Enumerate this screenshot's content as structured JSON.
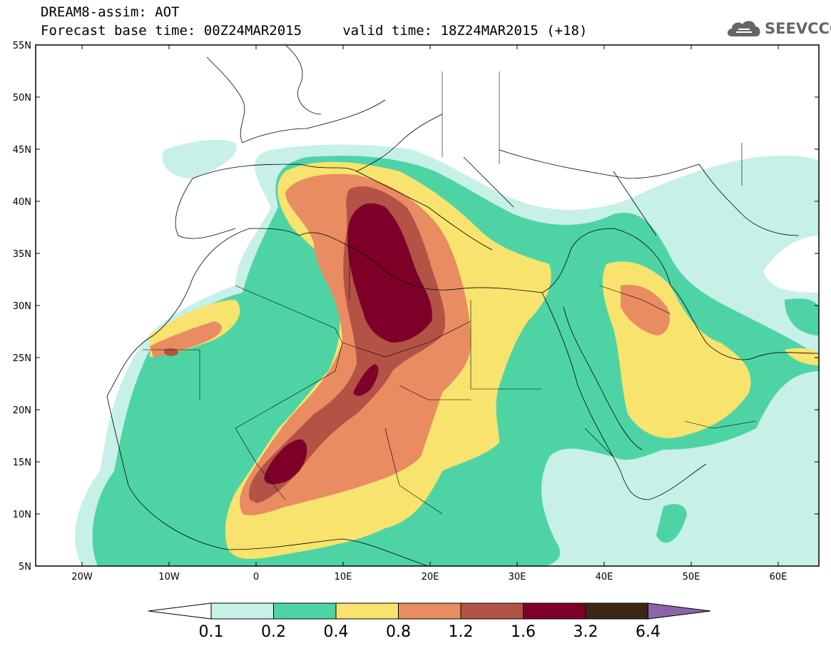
{
  "header": {
    "line1": "DREAM8-assim: AOT",
    "line2": "Forecast base time: 00Z24MAR2015     valid time: 18Z24MAR2015 (+18)",
    "logo_text": "SEEVCCC",
    "logo_icon": "cloud-icon"
  },
  "map": {
    "lat_labels": [
      "55N",
      "50N",
      "45N",
      "40N",
      "35N",
      "30N",
      "25N",
      "20N",
      "15N",
      "10N",
      "5N"
    ],
    "lon_labels": [
      "20W",
      "10W",
      "0",
      "10E",
      "20E",
      "30E",
      "40E",
      "50E",
      "60E"
    ]
  },
  "colorbar": {
    "labels": [
      "0.1",
      "0.2",
      "0.4",
      "0.8",
      "1.2",
      "1.6",
      "3.2",
      "6.4"
    ],
    "colors": [
      "#c6f0e8",
      "#4ed4a4",
      "#f7e36e",
      "#e98c62",
      "#b35346",
      "#7e0028",
      "#3c2716",
      "#8e64a8"
    ]
  }
}
